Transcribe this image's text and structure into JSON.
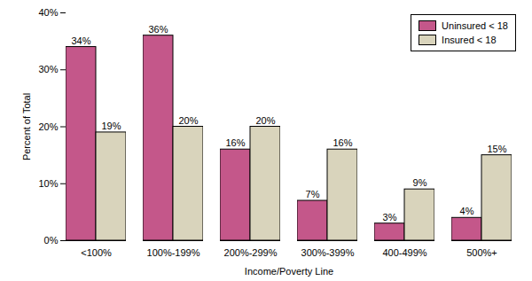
{
  "chart_data": {
    "type": "bar",
    "x_label": "Income/Poverty Line",
    "y_label": "Percent of Total",
    "categories": [
      "<100%",
      "100%-199%",
      "200%-299%",
      "300%-399%",
      "400-499%",
      "500%+"
    ],
    "series": [
      {
        "name": "Uninsured < 18",
        "color": "#c4578a",
        "values": [
          34,
          36,
          16,
          7,
          3,
          4
        ],
        "value_labels": [
          "34%",
          "36%",
          "16%",
          "7%",
          "3%",
          "4%"
        ]
      },
      {
        "name": "Insured < 18",
        "color": "#d9d4bc",
        "values": [
          19,
          20,
          20,
          16,
          9,
          15
        ],
        "value_labels": [
          "19%",
          "20%",
          "20%",
          "16%",
          "9%",
          "15%"
        ]
      }
    ],
    "ylim": [
      0,
      40
    ],
    "yticks": [
      {
        "value": 0,
        "label": "0%"
      },
      {
        "value": 10,
        "label": "10%"
      },
      {
        "value": 20,
        "label": "20%"
      },
      {
        "value": 30,
        "label": "30%"
      },
      {
        "value": 40,
        "label": "40%"
      }
    ],
    "grid": false,
    "legend": "top-right",
    "data_labels": true
  }
}
